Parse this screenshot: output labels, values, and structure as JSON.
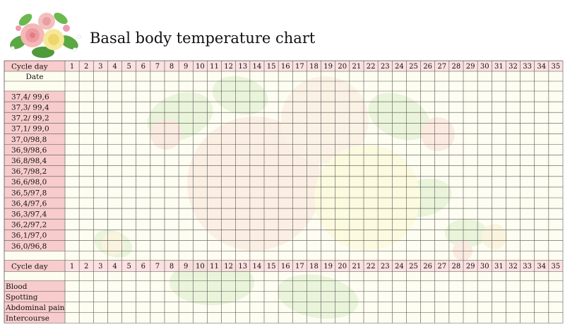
{
  "title": "Basal body temperature chart",
  "rows": {
    "cycle_day": "Cycle day",
    "date": "Date",
    "temperatures": [
      "37,4/ 99,6",
      "37,3/ 99,4",
      "37,2/ 99,2",
      "37,1/ 99,0",
      "37,0/98,8",
      "36,9/98,6",
      "36,8/98,4",
      "36,7/98,2",
      "36,6/98,0",
      "36,5/97,8",
      "36,4/97,6",
      "36,3/97,4",
      "36,2/97,2",
      "36,1/97,0",
      "36,0/96,8"
    ],
    "bottom_cycle_day": "Cycle day",
    "symptoms": [
      "Blood",
      "Spotting",
      "Abdominal pain",
      "Intercourse"
    ]
  },
  "days": [
    "1",
    "2",
    "3",
    "4",
    "5",
    "6",
    "7",
    "8",
    "9",
    "10",
    "11",
    "12",
    "13",
    "14",
    "15",
    "16",
    "17",
    "18",
    "19",
    "20",
    "21",
    "22",
    "23",
    "24",
    "25",
    "26",
    "27",
    "28",
    "29",
    "30",
    "31",
    "32",
    "33",
    "34",
    "35"
  ],
  "colors": {
    "label_bg": "#f7c6c6",
    "cycle_row_bg": "#fbdcdc",
    "grid_bg": "#fbfbe6",
    "grid_line": "#555555"
  },
  "decoration": "rose-bouquet-icon"
}
